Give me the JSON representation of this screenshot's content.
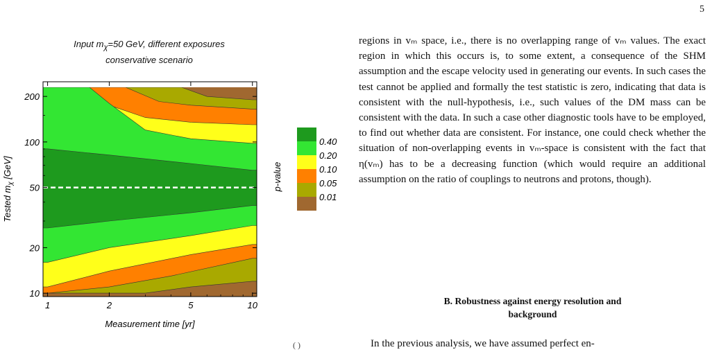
{
  "page_number": "5",
  "figure": {
    "title_line1": "Input m",
    "title_sub": "χ",
    "title_line1_rest": "=50 GeV, different exposures",
    "title_line2": "conservative scenario",
    "y_label_main": "Tested m",
    "y_label_sub": "χ",
    "y_label_unit": " [GeV]",
    "x_label": "Measurement time [yr]",
    "colorbar_title": "p-value",
    "caption_fragment": "( )"
  },
  "chart_data": {
    "type": "contour",
    "title": "Input mχ=50 GeV, different exposures — conservative scenario",
    "xlabel": "Measurement time [yr]",
    "ylabel": "Tested mχ [GeV]",
    "x_scale": "log",
    "y_scale": "log",
    "xlim": [
      0.95,
      10.5
    ],
    "ylim": [
      9.5,
      250
    ],
    "x_ticks": [
      1,
      2,
      5,
      10
    ],
    "y_ticks": [
      10,
      20,
      50,
      100,
      200
    ],
    "input_mass_line": 50,
    "levels": [
      {
        "label": "0.40",
        "range": [
          0.4,
          1.0
        ],
        "color": "#1e9a1e"
      },
      {
        "label": "0.20",
        "range": [
          0.2,
          0.4
        ],
        "color": "#33e633"
      },
      {
        "label": "0.10",
        "range": [
          0.1,
          0.2
        ],
        "color": "#ffff1a"
      },
      {
        "label": "0.05",
        "range": [
          0.05,
          0.1
        ],
        "color": "#ff8000"
      },
      {
        "label": "0.01",
        "range": [
          0.01,
          0.05
        ],
        "color": "#a9a900"
      },
      {
        "label": "",
        "range": [
          0,
          0.01
        ],
        "color": "#a06830"
      }
    ],
    "colorbar_labels": [
      "0.40",
      "0.20",
      "0.10",
      "0.05",
      "0.01"
    ],
    "colorbar_title": "p-value",
    "region_boundaries": [
      {
        "level": "0.40",
        "upper": [
          [
            1,
            90
          ],
          [
            2,
            82
          ],
          [
            5,
            72
          ],
          [
            10,
            65
          ]
        ],
        "lower": [
          [
            1,
            27
          ],
          [
            2,
            30
          ],
          [
            5,
            34
          ],
          [
            10,
            38
          ]
        ]
      },
      {
        "level": "0.20",
        "upper": [
          [
            1,
            230
          ],
          [
            1.6,
            230
          ],
          [
            2,
            180
          ],
          [
            3,
            120
          ],
          [
            5,
            105
          ],
          [
            10,
            98
          ]
        ],
        "lower": [
          [
            1,
            16
          ],
          [
            2,
            20
          ],
          [
            5,
            24
          ],
          [
            10,
            28
          ]
        ]
      },
      {
        "level": "0.10",
        "upper": [
          [
            1.5,
            230
          ],
          [
            2,
            175
          ],
          [
            3,
            145
          ],
          [
            5,
            135
          ],
          [
            10,
            130
          ]
        ],
        "lower": [
          [
            1,
            11
          ],
          [
            2,
            14
          ],
          [
            5,
            18
          ],
          [
            10,
            21
          ]
        ]
      },
      {
        "level": "0.05",
        "upper": [
          [
            2.4,
            230
          ],
          [
            3.5,
            185
          ],
          [
            5,
            175
          ],
          [
            10,
            165
          ]
        ],
        "lower": [
          [
            1,
            10
          ],
          [
            2,
            11
          ],
          [
            4,
            13
          ],
          [
            10,
            17
          ]
        ]
      },
      {
        "level": "0.01",
        "upper": [
          [
            4.5,
            230
          ],
          [
            6,
            200
          ],
          [
            10,
            190
          ]
        ],
        "lower": [
          [
            1.4,
            10
          ],
          [
            3,
            10
          ],
          [
            5,
            11
          ],
          [
            10,
            12
          ]
        ]
      }
    ]
  },
  "text": {
    "paragraph": "regions in vₘ space, i.e., there is no overlapping range of vₘ values. The exact region in which this occurs is, to some extent, a consequence of the SHM assumption and the escape velocity used in generating our events. In such cases the test cannot be applied and formally the test statistic is zero, indicating that data is consistent with the null-hypothesis, i.e., such values of the DM mass can be consistent with the data. In such a case other diagnostic tools have to be employed, to find out whether data are consistent. For instance, one could check whether the situation of non-overlapping events in vₘ-space is consistent with the fact that η(vₘ) has to be a decreasing function (which would require an additional assumption on the ratio of couplings to neutrons and protons, though).",
    "section_heading_line1": "B.   Robustness against energy resolution and",
    "section_heading_line2": "background",
    "next_line": "In the previous analysis, we have assumed perfect en-"
  }
}
